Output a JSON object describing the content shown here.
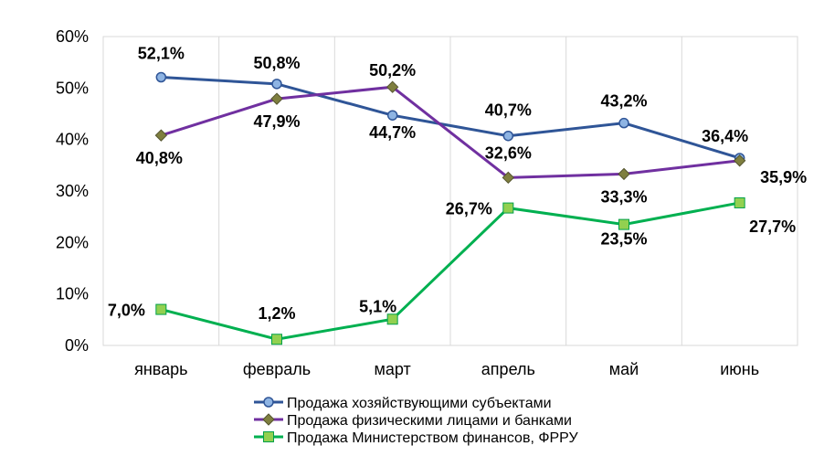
{
  "chart_data": {
    "type": "line",
    "categories": [
      "январь",
      "февраль",
      "март",
      "апрель",
      "май",
      "июнь"
    ],
    "ylim": [
      0,
      60
    ],
    "yticks": [
      "0%",
      "10%",
      "20%",
      "30%",
      "40%",
      "50%",
      "60%"
    ],
    "grid": "vertical",
    "legend_position": "bottom",
    "series": [
      {
        "name": "Продажа хозяйствующими субъектами",
        "values": [
          52.1,
          50.8,
          44.7,
          40.7,
          43.2,
          36.4
        ],
        "labels": [
          "52,1%",
          "50,8%",
          "44,7%",
          "40,7%",
          "43,2%",
          "36,4%"
        ],
        "color": "#2f5597",
        "marker_color": "#8eb4e3",
        "marker": "circle"
      },
      {
        "name": "Продажа физическими лицами и банками",
        "values": [
          40.8,
          47.9,
          50.2,
          32.6,
          33.3,
          35.9
        ],
        "labels": [
          "40,8%",
          "47,9%",
          "50,2%",
          "32,6%",
          "33,3%",
          "35,9%"
        ],
        "color": "#7030a0",
        "marker_color": "#7f7f3f",
        "marker": "diamond"
      },
      {
        "name": "Продажа Министерством финансов, ФРРУ",
        "values": [
          7.0,
          1.2,
          5.1,
          26.7,
          23.5,
          27.7
        ],
        "labels": [
          "7,0%",
          "1,2%",
          "5,1%",
          "26,7%",
          "23,5%",
          "27,7%"
        ],
        "color": "#00b050",
        "marker_color": "#92d050",
        "marker": "square"
      }
    ]
  }
}
